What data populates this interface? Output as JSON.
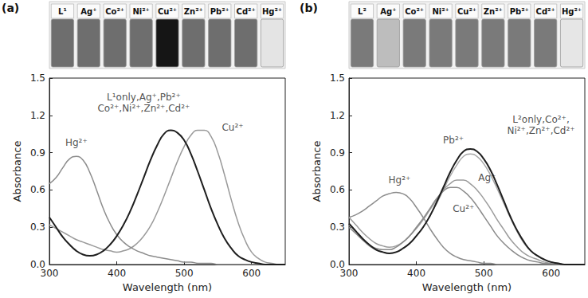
{
  "chart_data": [
    {
      "type": "line",
      "panel_label": "(a)",
      "vials": {
        "labels": [
          "L¹",
          "Ag⁺",
          "Co²⁺",
          "Ni²⁺",
          "Cu²⁺",
          "Zn²⁺",
          "Pb²⁺",
          "Cd²⁺",
          "Hg²⁺"
        ],
        "colors": [
          "#6e6e6e",
          "#6e6e6e",
          "#6e6e6e",
          "#6e6e6e",
          "#151515",
          "#6e6e6e",
          "#6e6e6e",
          "#6e6e6e",
          "#e4e4e4"
        ]
      },
      "x_label": "Wavelength (nm)",
      "y_label": "Absorbance",
      "x": [
        300,
        310,
        320,
        330,
        340,
        350,
        360,
        370,
        380,
        390,
        400,
        410,
        420,
        430,
        440,
        450,
        460,
        470,
        480,
        490,
        500,
        510,
        520,
        530,
        540,
        550,
        560,
        570,
        580,
        590,
        600,
        610,
        620,
        630,
        640,
        650
      ],
      "xlim": [
        300,
        650
      ],
      "xticks": [
        300,
        400,
        500,
        600
      ],
      "ylim": [
        0,
        1.5
      ],
      "yticks": [
        {
          "value": 0,
          "label": "0.0"
        },
        0.3,
        0.6,
        0.9,
        1.2,
        1.5
      ],
      "grid": false,
      "series": [
        {
          "name": "L¹only,Ag⁺,Pb²⁺\nCo²⁺,Ni²⁺,Zn²⁺,Cd²⁺",
          "color": "#1e1e1e",
          "label_at": [
            440,
            1.3
          ],
          "values": [
            0.38,
            0.3,
            0.22,
            0.16,
            0.11,
            0.08,
            0.07,
            0.08,
            0.11,
            0.16,
            0.23,
            0.32,
            0.43,
            0.56,
            0.7,
            0.84,
            0.96,
            1.05,
            1.08,
            1.06,
            1.0,
            0.89,
            0.75,
            0.6,
            0.45,
            0.32,
            0.21,
            0.13,
            0.07,
            0.04,
            0.02,
            0.01,
            0,
            0,
            0,
            0
          ]
        },
        {
          "name": "Cu²⁺",
          "color": "#9a9a9a",
          "label_at": [
            572,
            1.1
          ],
          "values": [
            0.32,
            0.29,
            0.26,
            0.23,
            0.2,
            0.18,
            0.16,
            0.14,
            0.12,
            0.11,
            0.1,
            0.11,
            0.13,
            0.17,
            0.23,
            0.31,
            0.42,
            0.55,
            0.69,
            0.83,
            0.95,
            1.04,
            1.08,
            1.08,
            1.03,
            0.9,
            0.72,
            0.52,
            0.34,
            0.2,
            0.1,
            0.05,
            0.02,
            0.01,
            0,
            0
          ]
        },
        {
          "name": "Hg²⁺",
          "color": "#8c8c8c",
          "label_at": [
            340,
            0.98
          ],
          "values": [
            0.65,
            0.7,
            0.78,
            0.85,
            0.87,
            0.84,
            0.74,
            0.6,
            0.45,
            0.33,
            0.24,
            0.18,
            0.14,
            0.11,
            0.09,
            0.07,
            0.06,
            0.05,
            0.04,
            0.03,
            0.02,
            0.02,
            0.01,
            0.01,
            0.01,
            0,
            0,
            0,
            0,
            0,
            0,
            0,
            0,
            0,
            0,
            0
          ]
        }
      ]
    },
    {
      "type": "line",
      "panel_label": "(b)",
      "vials": {
        "labels": [
          "L²",
          "Ag⁺",
          "Co²⁺",
          "Ni²⁺",
          "Cu²⁺",
          "Zn²⁺",
          "Pb²⁺",
          "Cd²⁺",
          "Hg²⁺"
        ],
        "colors": [
          "#7a7a7a",
          "#bdbdbd",
          "#7a7a7a",
          "#7a7a7a",
          "#7a7a7a",
          "#7a7a7a",
          "#7a7a7a",
          "#7a7a7a",
          "#e6e6e6"
        ]
      },
      "x_label": "Wavelength (nm)",
      "y_label": "Absorbance",
      "x": [
        300,
        310,
        320,
        330,
        340,
        350,
        360,
        370,
        380,
        390,
        400,
        410,
        420,
        430,
        440,
        450,
        460,
        470,
        480,
        490,
        500,
        510,
        520,
        530,
        540,
        550,
        560,
        570,
        580,
        590,
        600,
        610,
        620,
        630,
        640,
        650
      ],
      "xlim": [
        300,
        650
      ],
      "xticks": [
        300,
        400,
        500,
        600
      ],
      "ylim": [
        0,
        1.5
      ],
      "yticks": [
        {
          "value": 0,
          "label": "0.0"
        },
        0.3,
        0.6,
        0.9,
        1.2,
        1.5
      ],
      "grid": false,
      "series": [
        {
          "name": "L²only,Co²⁺,\nNi²⁺,Zn²⁺,Cd²⁺",
          "color": "#1e1e1e",
          "label_at": [
            585,
            1.12
          ],
          "values": [
            0.33,
            0.27,
            0.21,
            0.16,
            0.12,
            0.1,
            0.09,
            0.1,
            0.13,
            0.17,
            0.23,
            0.3,
            0.39,
            0.5,
            0.62,
            0.74,
            0.84,
            0.91,
            0.93,
            0.91,
            0.85,
            0.76,
            0.64,
            0.51,
            0.38,
            0.27,
            0.18,
            0.11,
            0.07,
            0.04,
            0.02,
            0.01,
            0,
            0,
            0,
            0
          ]
        },
        {
          "name": "Pb²⁺",
          "color": "#a8a8a8",
          "label_at": [
            455,
            1.0
          ],
          "values": [
            0.32,
            0.26,
            0.2,
            0.15,
            0.12,
            0.1,
            0.09,
            0.1,
            0.13,
            0.17,
            0.23,
            0.3,
            0.39,
            0.49,
            0.6,
            0.71,
            0.8,
            0.87,
            0.89,
            0.87,
            0.81,
            0.72,
            0.61,
            0.49,
            0.37,
            0.26,
            0.17,
            0.11,
            0.07,
            0.04,
            0.02,
            0.01,
            0,
            0,
            0,
            0
          ]
        },
        {
          "name": "Ag⁺",
          "color": "#9c9c9c",
          "label_at": [
            505,
            0.7
          ],
          "values": [
            0.38,
            0.32,
            0.26,
            0.21,
            0.17,
            0.15,
            0.14,
            0.15,
            0.18,
            0.23,
            0.29,
            0.36,
            0.44,
            0.52,
            0.6,
            0.65,
            0.68,
            0.68,
            0.65,
            0.6,
            0.53,
            0.45,
            0.36,
            0.28,
            0.2,
            0.14,
            0.09,
            0.06,
            0.04,
            0.02,
            0.01,
            0.01,
            0,
            0,
            0,
            0
          ]
        },
        {
          "name": "Cu²⁺",
          "color": "#8a8a8a",
          "label_at": [
            470,
            0.45
          ],
          "values": [
            0.3,
            0.25,
            0.2,
            0.16,
            0.13,
            0.12,
            0.12,
            0.14,
            0.18,
            0.23,
            0.3,
            0.37,
            0.45,
            0.53,
            0.59,
            0.62,
            0.62,
            0.59,
            0.54,
            0.47,
            0.39,
            0.31,
            0.23,
            0.17,
            0.12,
            0.08,
            0.05,
            0.03,
            0.02,
            0.01,
            0.01,
            0,
            0,
            0,
            0,
            0
          ]
        },
        {
          "name": "Hg²⁺",
          "color": "#8c8c8c",
          "label_at": [
            375,
            0.68
          ],
          "values": [
            0.38,
            0.4,
            0.43,
            0.47,
            0.51,
            0.55,
            0.57,
            0.58,
            0.57,
            0.53,
            0.46,
            0.38,
            0.29,
            0.21,
            0.14,
            0.09,
            0.06,
            0.04,
            0.03,
            0.02,
            0.01,
            0.01,
            0,
            0,
            0,
            0,
            0,
            0,
            0,
            0,
            0,
            0,
            0,
            0,
            0,
            0
          ]
        }
      ]
    }
  ]
}
